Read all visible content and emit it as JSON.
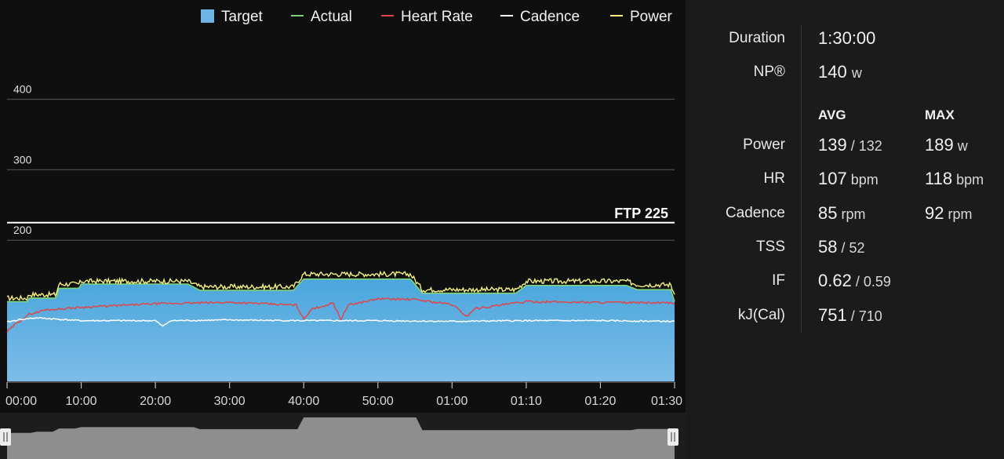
{
  "chart_data": {
    "type": "line",
    "legend": [
      {
        "name": "Target",
        "color": "#6cb4e4",
        "marker": "square"
      },
      {
        "name": "Actual",
        "color": "#7ed37a",
        "marker": "line"
      },
      {
        "name": "Heart Rate",
        "color": "#e04646",
        "marker": "line"
      },
      {
        "name": "Cadence",
        "color": "#ffffff",
        "marker": "line"
      },
      {
        "name": "Power",
        "color": "#f4f081",
        "marker": "line"
      }
    ],
    "legend_placement": "top",
    "y_ticks": [
      {
        "value": 200,
        "label": "200"
      },
      {
        "value": 300,
        "label": "300"
      },
      {
        "value": 400,
        "label": "400"
      }
    ],
    "ylim": [
      0,
      415
    ],
    "xlim_minutes": [
      0,
      90
    ],
    "x_ticks": [
      {
        "value": 0,
        "label": "00:00"
      },
      {
        "value": 10,
        "label": "10:00"
      },
      {
        "value": 20,
        "label": "20:00"
      },
      {
        "value": 30,
        "label": "30:00"
      },
      {
        "value": 40,
        "label": "40:00"
      },
      {
        "value": 50,
        "label": "50:00"
      },
      {
        "value": 60,
        "label": "01:00"
      },
      {
        "value": 70,
        "label": "01:10"
      },
      {
        "value": 80,
        "label": "01:20"
      },
      {
        "value": 90,
        "label": "01:30"
      }
    ],
    "ftp": {
      "value": 225,
      "label": "FTP 225"
    },
    "series": [
      {
        "name": "Target",
        "color": "#6cb4e4",
        "x": [
          0,
          3,
          7,
          10,
          26,
          40,
          56,
          70,
          85,
          90
        ],
        "y": [
          113,
          118,
          132,
          138,
          129,
          145,
          125,
          136,
          130,
          113
        ]
      },
      {
        "name": "Actual",
        "color": "#7ed37a",
        "x": [
          0,
          3,
          7,
          10,
          26,
          40,
          56,
          70,
          85,
          90
        ],
        "y": [
          113,
          118,
          132,
          138,
          129,
          145,
          125,
          136,
          130,
          113
        ]
      },
      {
        "name": "Power",
        "color": "#f4f081",
        "x": [
          0,
          3,
          7,
          10,
          26,
          40,
          56,
          70,
          85,
          90
        ],
        "y": [
          118,
          123,
          138,
          142,
          134,
          152,
          130,
          142,
          137,
          123
        ]
      },
      {
        "name": "Heart Rate",
        "color": "#e04646",
        "x": [
          0,
          1,
          3,
          5,
          10,
          20,
          30,
          39,
          40,
          41,
          44,
          45,
          46,
          50,
          55,
          60,
          62,
          63,
          70,
          80,
          90
        ],
        "y": [
          70,
          80,
          95,
          101,
          105,
          110,
          112,
          108,
          88,
          102,
          111,
          88,
          108,
          117,
          116,
          109,
          92,
          103,
          113,
          112,
          111
        ],
        "note": "not-printed"
      },
      {
        "name": "Cadence",
        "color": "#ffffff",
        "x": [
          0,
          2,
          4,
          10,
          20,
          21,
          22,
          30,
          40,
          50,
          60,
          70,
          80,
          90
        ],
        "y": [
          84,
          88,
          90,
          86,
          86,
          78,
          86,
          87,
          86,
          86,
          85,
          86,
          86,
          85
        ]
      }
    ],
    "overview": {
      "x": [
        0,
        4,
        7,
        10,
        26,
        40,
        56,
        85,
        90
      ],
      "y": [
        113,
        118,
        132,
        138,
        129,
        180,
        125,
        130,
        113
      ]
    }
  },
  "stats": {
    "duration_label": "Duration",
    "duration_value": "1:30:00",
    "np_label": "NP®",
    "np_value": "140",
    "np_unit": "w",
    "avg_header": "AVG",
    "max_header": "MAX",
    "rows": [
      {
        "label": "Power",
        "avg": "139",
        "avg_sub": "/ 132",
        "max": "189",
        "max_unit": "w"
      },
      {
        "label": "HR",
        "avg": "107",
        "avg_sub": "bpm",
        "max": "118",
        "max_unit": "bpm"
      },
      {
        "label": "Cadence",
        "avg": "85",
        "avg_sub": "rpm",
        "max": "92",
        "max_unit": "rpm"
      },
      {
        "label": "TSS",
        "avg": "58",
        "avg_sub": "/ 52"
      },
      {
        "label": "IF",
        "avg": "0.62",
        "avg_sub": "/ 0.59"
      },
      {
        "label": "kJ(Cal)",
        "avg": "751",
        "avg_sub": "/ 710"
      }
    ]
  }
}
